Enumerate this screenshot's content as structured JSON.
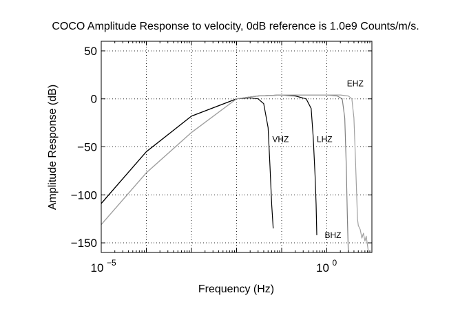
{
  "chart_data": {
    "type": "line",
    "title": "COCO Amplitude Response to velocity, 0dB reference is 1.0e9 Counts/m/s.",
    "xlabel": "Frequency (Hz)",
    "ylabel": "Amplitude Response (dB)",
    "x_scale": "log",
    "xlim": [
      1e-05,
      10
    ],
    "ylim": [
      -160,
      60
    ],
    "x_ticks": [
      {
        "value": 1e-05,
        "base": "10",
        "exp": "−5"
      },
      {
        "value": 1,
        "base": "10",
        "exp": "0"
      }
    ],
    "y_ticks": [
      50,
      0,
      -50,
      -100,
      -150
    ],
    "y_tick_labels": [
      "50",
      "0",
      "−50",
      "−100",
      "−150"
    ],
    "grid": true,
    "series": [
      {
        "name": "VHZ",
        "color": "#000000",
        "points": [
          [
            1e-05,
            -109
          ],
          [
            0.0001,
            -55
          ],
          [
            0.001,
            -18
          ],
          [
            0.01,
            0
          ],
          [
            0.02,
            1
          ],
          [
            0.03,
            0
          ],
          [
            0.04,
            -5
          ],
          [
            0.05,
            -30
          ],
          [
            0.055,
            -70
          ],
          [
            0.06,
            -110
          ],
          [
            0.065,
            -135
          ]
        ]
      },
      {
        "name": "LHZ",
        "color": "#000000",
        "points": [
          [
            1e-05,
            -109
          ],
          [
            0.0001,
            -55
          ],
          [
            0.001,
            -18
          ],
          [
            0.01,
            0
          ],
          [
            0.03,
            3
          ],
          [
            0.1,
            4
          ],
          [
            0.2,
            3
          ],
          [
            0.35,
            0
          ],
          [
            0.45,
            -10
          ],
          [
            0.5,
            -40
          ],
          [
            0.55,
            -80
          ],
          [
            0.58,
            -110
          ],
          [
            0.6,
            -142
          ]
        ]
      },
      {
        "name": "BHZ",
        "color": "#808080",
        "points": [
          [
            1e-05,
            -131
          ],
          [
            0.0001,
            -77
          ],
          [
            0.001,
            -35
          ],
          [
            0.01,
            0
          ],
          [
            0.03,
            3
          ],
          [
            0.1,
            4
          ],
          [
            0.3,
            4
          ],
          [
            1,
            4
          ],
          [
            1.7,
            3
          ],
          [
            2.2,
            0
          ],
          [
            2.5,
            -20
          ],
          [
            2.7,
            -70
          ],
          [
            2.85,
            -120
          ],
          [
            3,
            -162
          ]
        ]
      },
      {
        "name": "EHZ",
        "color": "#a0a0a0",
        "points": [
          [
            1e-05,
            -131
          ],
          [
            0.0001,
            -77
          ],
          [
            0.001,
            -35
          ],
          [
            0.01,
            0
          ],
          [
            0.03,
            3
          ],
          [
            0.1,
            4
          ],
          [
            0.3,
            4
          ],
          [
            1,
            4
          ],
          [
            2,
            4
          ],
          [
            3,
            3
          ],
          [
            3.6,
            0
          ],
          [
            4,
            -20
          ],
          [
            4.3,
            -60
          ],
          [
            4.6,
            -100
          ],
          [
            4.8,
            -125
          ],
          [
            5,
            -132
          ],
          [
            5.5,
            -136
          ],
          [
            6,
            -145
          ],
          [
            6.5,
            -140
          ],
          [
            7,
            -148
          ],
          [
            7.5,
            -143
          ],
          [
            8.5,
            -162
          ]
        ]
      }
    ],
    "annotations": [
      {
        "text": "VHZ",
        "x": 0.062,
        "y": -45
      },
      {
        "text": "LHZ",
        "x": 0.6,
        "y": -45
      },
      {
        "text": "EHZ",
        "x": 2.8,
        "y": 13
      },
      {
        "text": "BHZ",
        "x": 0.9,
        "y": -145
      }
    ]
  }
}
